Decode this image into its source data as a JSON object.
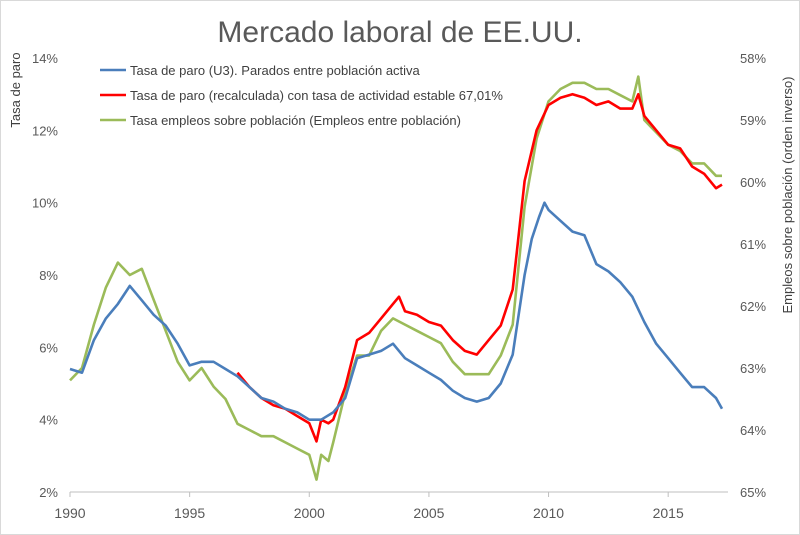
{
  "chart_data": {
    "type": "line",
    "title": "Mercado laboral de EE.UU.",
    "ylabel": "Tasa de paro",
    "y2label": "Empleos sobre población (orden inverso)",
    "ylim": [
      2,
      14
    ],
    "y2lim": [
      65,
      58
    ],
    "y2_inverted": true,
    "xlim": [
      1990,
      2017.5
    ],
    "yticks": [
      "2%",
      "4%",
      "6%",
      "8%",
      "10%",
      "12%",
      "14%"
    ],
    "y2ticks": [
      "58%",
      "59%",
      "60%",
      "61%",
      "62%",
      "63%",
      "64%",
      "65%"
    ],
    "xticks": [
      "1990",
      "1995",
      "2000",
      "2005",
      "2010",
      "2015"
    ],
    "grid": false,
    "legend_position": "top-left",
    "series": [
      {
        "name": "Tasa de paro (U3). Parados entre población activa",
        "color": "#4a7ebb",
        "axis": "left",
        "x": [
          1990.0,
          1990.5,
          1991.0,
          1991.5,
          1992.0,
          1992.5,
          1993.0,
          1993.5,
          1994.0,
          1994.5,
          1995.0,
          1995.5,
          1996.0,
          1996.5,
          1997.0,
          1997.5,
          1998.0,
          1998.5,
          1999.0,
          1999.5,
          2000.0,
          2000.5,
          2001.0,
          2001.5,
          2002.0,
          2002.5,
          2003.0,
          2003.5,
          2004.0,
          2004.5,
          2005.0,
          2005.5,
          2006.0,
          2006.5,
          2007.0,
          2007.5,
          2008.0,
          2008.5,
          2009.0,
          2009.3,
          2009.6,
          2009.83,
          2010.0,
          2010.5,
          2011.0,
          2011.5,
          2012.0,
          2012.5,
          2013.0,
          2013.5,
          2014.0,
          2014.5,
          2015.0,
          2015.5,
          2016.0,
          2016.5,
          2017.0,
          2017.25
        ],
        "y": [
          5.4,
          5.3,
          6.2,
          6.8,
          7.2,
          7.7,
          7.3,
          6.9,
          6.6,
          6.1,
          5.5,
          5.6,
          5.6,
          5.4,
          5.2,
          4.9,
          4.6,
          4.5,
          4.3,
          4.2,
          4.0,
          4.0,
          4.2,
          4.6,
          5.7,
          5.8,
          5.9,
          6.1,
          5.7,
          5.5,
          5.3,
          5.1,
          4.8,
          4.6,
          4.5,
          4.6,
          5.0,
          5.8,
          8.0,
          9.0,
          9.6,
          10.0,
          9.8,
          9.5,
          9.2,
          9.1,
          8.3,
          8.1,
          7.8,
          7.4,
          6.7,
          6.1,
          5.7,
          5.3,
          4.9,
          4.9,
          4.6,
          4.3
        ]
      },
      {
        "name": "Tasa de paro (recalculada) con tasa de actividad estable 67,01%",
        "color": "#ff0000",
        "axis": "left",
        "x": [
          1997.0,
          1997.5,
          1998.0,
          1998.5,
          1999.0,
          1999.5,
          2000.0,
          2000.3,
          2000.5,
          2000.8,
          2001.0,
          2001.5,
          2002.0,
          2002.5,
          2003.0,
          2003.5,
          2003.75,
          2004.0,
          2004.5,
          2005.0,
          2005.5,
          2006.0,
          2006.5,
          2007.0,
          2007.5,
          2008.0,
          2008.5,
          2009.0,
          2009.5,
          2010.0,
          2010.5,
          2011.0,
          2011.5,
          2012.0,
          2012.5,
          2013.0,
          2013.5,
          2013.75,
          2014.0,
          2014.5,
          2015.0,
          2015.5,
          2016.0,
          2016.5,
          2017.0,
          2017.25
        ],
        "y": [
          5.3,
          4.9,
          4.6,
          4.4,
          4.3,
          4.1,
          3.9,
          3.4,
          4.0,
          3.9,
          4.0,
          4.9,
          6.2,
          6.4,
          6.8,
          7.2,
          7.4,
          7.0,
          6.9,
          6.7,
          6.6,
          6.2,
          5.9,
          5.8,
          6.2,
          6.6,
          7.6,
          10.6,
          12.0,
          12.7,
          12.9,
          13.0,
          12.9,
          12.7,
          12.8,
          12.6,
          12.6,
          13.0,
          12.4,
          12.0,
          11.6,
          11.5,
          11.0,
          10.8,
          10.4,
          10.5
        ]
      },
      {
        "name": "Tasa empleos sobre población (Empleos entre población)",
        "color": "#9bbb59",
        "axis": "right",
        "x": [
          1990.0,
          1990.5,
          1991.0,
          1991.5,
          1992.0,
          1992.5,
          1993.0,
          1993.5,
          1994.0,
          1994.5,
          1995.0,
          1995.5,
          1996.0,
          1996.5,
          1997.0,
          1997.5,
          1998.0,
          1998.5,
          1999.0,
          1999.5,
          2000.0,
          2000.3,
          2000.5,
          2000.8,
          2001.0,
          2001.5,
          2002.0,
          2002.5,
          2003.0,
          2003.5,
          2004.0,
          2004.5,
          2005.0,
          2005.5,
          2006.0,
          2006.5,
          2007.0,
          2007.5,
          2008.0,
          2008.5,
          2009.0,
          2009.5,
          2010.0,
          2010.5,
          2011.0,
          2011.5,
          2012.0,
          2012.5,
          2013.0,
          2013.5,
          2013.75,
          2014.0,
          2014.5,
          2015.0,
          2015.5,
          2016.0,
          2016.5,
          2017.0,
          2017.25
        ],
        "y": [
          63.2,
          63.0,
          62.3,
          61.7,
          61.3,
          61.5,
          61.4,
          61.9,
          62.4,
          62.9,
          63.2,
          63.0,
          63.3,
          63.5,
          63.9,
          64.0,
          64.1,
          64.1,
          64.2,
          64.3,
          64.4,
          64.8,
          64.4,
          64.5,
          64.2,
          63.4,
          62.8,
          62.8,
          62.4,
          62.2,
          62.3,
          62.4,
          62.5,
          62.6,
          62.9,
          63.1,
          63.1,
          63.1,
          62.8,
          62.3,
          60.4,
          59.3,
          58.7,
          58.5,
          58.4,
          58.4,
          58.5,
          58.5,
          58.6,
          58.7,
          58.3,
          59.0,
          59.2,
          59.4,
          59.5,
          59.7,
          59.7,
          59.9,
          59.9
        ]
      }
    ]
  }
}
